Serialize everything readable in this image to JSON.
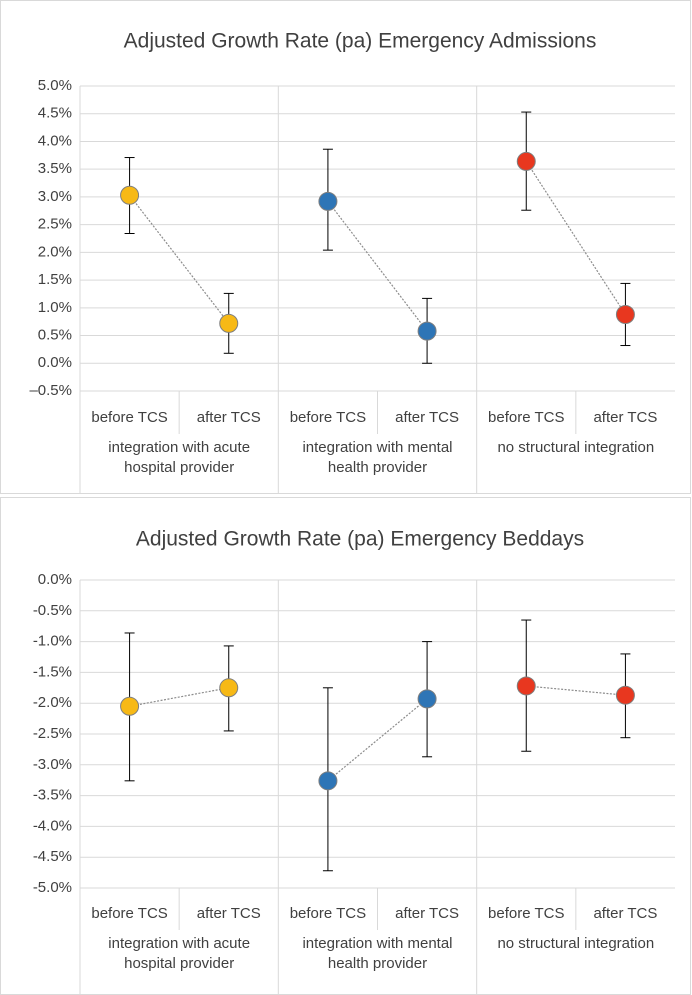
{
  "chart_data": [
    {
      "type": "dot-errorbar",
      "title": "Adjusted Growth Rate (pa) Emergency Admissions",
      "ylim": [
        -0.5,
        5
      ],
      "grid": true,
      "yticks": [
        {
          "value": 5,
          "label": "5.0%"
        },
        {
          "value": 4.5,
          "label": "4.5%"
        },
        {
          "value": 4,
          "label": "4.0%"
        },
        {
          "value": 3.5,
          "label": "3.5%"
        },
        {
          "value": 3,
          "label": "3.0%"
        },
        {
          "value": 2.5,
          "label": "2.5%"
        },
        {
          "value": 2,
          "label": "2.0%"
        },
        {
          "value": 1.5,
          "label": "1.5%"
        },
        {
          "value": 1,
          "label": "1.0%"
        },
        {
          "value": 0.5,
          "label": "0.5%"
        },
        {
          "value": 0,
          "label": "0.0%"
        },
        {
          "value": -0.5,
          "label": "–0.5%"
        }
      ],
      "groups": [
        {
          "name": "integration with acute hospital provider",
          "color": "#f7b916",
          "categories": [
            "before TCS",
            "after TCS"
          ],
          "values": [
            3.03,
            0.72
          ],
          "lower": [
            2.34,
            0.18
          ],
          "upper": [
            3.71,
            1.26
          ]
        },
        {
          "name": "integration with mental health provider",
          "color": "#2e75b6",
          "categories": [
            "before TCS",
            "after TCS"
          ],
          "values": [
            2.92,
            0.58
          ],
          "lower": [
            2.04,
            0.0
          ],
          "upper": [
            3.86,
            1.17
          ]
        },
        {
          "name": "no structural integration",
          "color": "#e8371f",
          "categories": [
            "before TCS",
            "after TCS"
          ],
          "values": [
            3.64,
            0.88
          ],
          "lower": [
            2.76,
            0.32
          ],
          "upper": [
            4.53,
            1.44
          ]
        }
      ]
    },
    {
      "type": "dot-errorbar",
      "title": "Adjusted Growth Rate (pa) Emergency Beddays",
      "ylim": [
        -5,
        0
      ],
      "grid": true,
      "yticks": [
        {
          "value": 0,
          "label": "0.0%"
        },
        {
          "value": -0.5,
          "label": "-0.5%"
        },
        {
          "value": -1,
          "label": "-1.0%"
        },
        {
          "value": -1.5,
          "label": "-1.5%"
        },
        {
          "value": -2,
          "label": "-2.0%"
        },
        {
          "value": -2.5,
          "label": "-2.5%"
        },
        {
          "value": -3,
          "label": "-3.0%"
        },
        {
          "value": -3.5,
          "label": "-3.5%"
        },
        {
          "value": -4,
          "label": "-4.0%"
        },
        {
          "value": -4.5,
          "label": "-4.5%"
        },
        {
          "value": -5,
          "label": "-5.0%"
        }
      ],
      "groups": [
        {
          "name": "integration with acute hospital provider",
          "color": "#f7b916",
          "categories": [
            "before TCS",
            "after TCS"
          ],
          "values": [
            -2.05,
            -1.75
          ],
          "lower": [
            -3.26,
            -2.45
          ],
          "upper": [
            -0.86,
            -1.07
          ]
        },
        {
          "name": "integration with mental health provider",
          "color": "#2e75b6",
          "categories": [
            "before TCS",
            "after TCS"
          ],
          "values": [
            -3.26,
            -1.93
          ],
          "lower": [
            -4.72,
            -2.87
          ],
          "upper": [
            -1.75,
            -1.0
          ]
        },
        {
          "name": "no structural integration",
          "color": "#e8371f",
          "categories": [
            "before TCS",
            "after TCS"
          ],
          "values": [
            -1.72,
            -1.87
          ],
          "lower": [
            -2.78,
            -2.56
          ],
          "upper": [
            -0.65,
            -1.2
          ]
        }
      ]
    }
  ]
}
